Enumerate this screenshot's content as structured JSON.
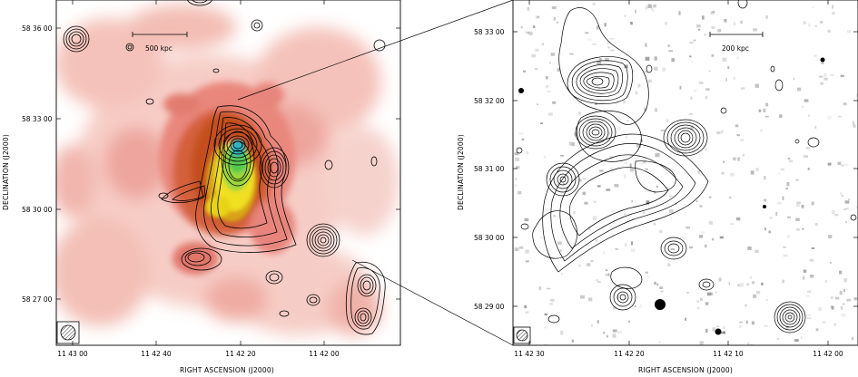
{
  "left_panel": {
    "y_ticks": [
      "58 36 00",
      "58 33 00",
      "58 30 00",
      "58 27 00"
    ],
    "x_ticks": [
      "11 43 00",
      "11 42 40",
      "11 42 20",
      "11 42 00"
    ],
    "xlabel": "RIGHT ASCENSION  (J2000)",
    "ylabel": "DECLINATION  (J2000)",
    "scale_bar": "500 kpc"
  },
  "right_panel": {
    "y_ticks": [
      "58 33 00",
      "58 32 00",
      "58 31 00",
      "58 30 00",
      "58 29 00"
    ],
    "x_ticks": [
      "11 42 30",
      "11 42 20",
      "11 42 10",
      "11 42 00"
    ],
    "xlabel": "RIGHT ASCENSION  (J2000)",
    "ylabel": "DECLINATION  (J2000)",
    "scale_bar": "200 kpc"
  },
  "colors": {
    "xray_faint": "#f5c9c3",
    "xray_mid": "#e3716b",
    "xray_bright": "#b84a12",
    "peak_yellow": "#f0e020",
    "peak_green": "#54c84f",
    "peak_cyan": "#2ab5c6",
    "contour": "#000000"
  }
}
